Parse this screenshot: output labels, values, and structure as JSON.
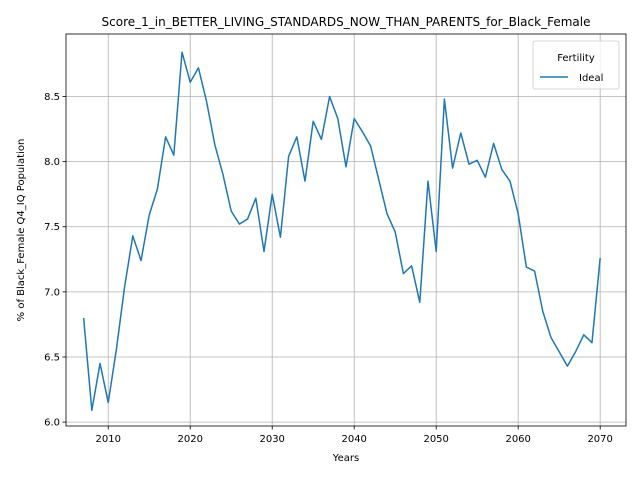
{
  "chart_data": {
    "type": "line",
    "title": "Score_1_in_BETTER_LIVING_STANDARDS_NOW_THAN_PARENTS_for_Black_Female",
    "xlabel": "Years",
    "ylabel": "% of Black_Female Q4_IQ Population",
    "xlim": [
      2004.85,
      2073.15
    ],
    "ylim": [
      5.97,
      8.98
    ],
    "xticks": [
      2010,
      2020,
      2030,
      2040,
      2050,
      2060,
      2070
    ],
    "yticks": [
      6.0,
      6.5,
      7.0,
      7.5,
      8.0,
      8.5
    ],
    "ytick_labels": [
      "6.0",
      "6.5",
      "7.0",
      "7.5",
      "8.0",
      "8.5"
    ],
    "grid": true,
    "legend": {
      "title": "Fertility",
      "placement": "top-right"
    },
    "series": [
      {
        "name": "Ideal",
        "color": "#1f77b4",
        "x": [
          2007,
          2008,
          2009,
          2010,
          2011,
          2012,
          2013,
          2014,
          2015,
          2016,
          2017,
          2018,
          2019,
          2020,
          2021,
          2022,
          2023,
          2024,
          2025,
          2026,
          2027,
          2028,
          2029,
          2030,
          2031,
          2032,
          2033,
          2034,
          2035,
          2036,
          2037,
          2038,
          2039,
          2040,
          2041,
          2042,
          2043,
          2044,
          2045,
          2046,
          2047,
          2048,
          2049,
          2050,
          2051,
          2052,
          2053,
          2054,
          2055,
          2056,
          2057,
          2058,
          2059,
          2060,
          2061,
          2062,
          2063,
          2064,
          2065,
          2066,
          2067,
          2068,
          2069,
          2070
        ],
        "y": [
          6.8,
          6.09,
          6.45,
          6.15,
          6.56,
          7.04,
          7.43,
          7.24,
          7.59,
          7.79,
          8.19,
          8.05,
          8.84,
          8.61,
          8.72,
          8.46,
          8.13,
          7.9,
          7.62,
          7.52,
          7.56,
          7.72,
          7.31,
          7.75,
          7.42,
          8.04,
          8.19,
          7.85,
          8.31,
          8.17,
          8.5,
          8.33,
          7.96,
          8.33,
          8.23,
          8.12,
          7.86,
          7.6,
          7.46,
          7.14,
          7.2,
          6.92,
          7.85,
          7.31,
          8.48,
          7.95,
          8.22,
          7.98,
          8.01,
          7.88,
          8.14,
          7.94,
          7.85,
          7.6,
          7.19,
          7.16,
          6.85,
          6.65,
          6.54,
          6.43,
          6.54,
          6.67,
          6.61,
          7.26
        ]
      }
    ]
  }
}
